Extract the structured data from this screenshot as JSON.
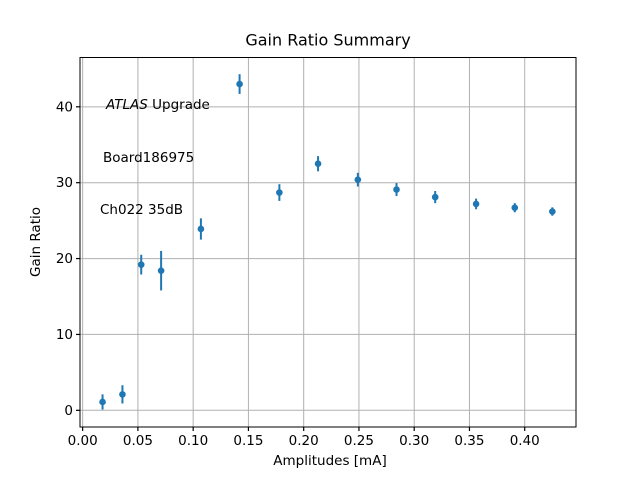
{
  "chart_data": {
    "type": "scatter",
    "title": "Gain Ratio Summary",
    "xlabel": "Amplitudes [mA]",
    "ylabel": "Gain Ratio",
    "annotation": {
      "line1_italic": "ATLAS",
      "line1_rest": " Upgrade",
      "line2": "Board186975",
      "line3": "Ch022 35dB"
    },
    "x": [
      0.018,
      0.036,
      0.053,
      0.071,
      0.107,
      0.142,
      0.178,
      0.213,
      0.249,
      0.284,
      0.319,
      0.356,
      0.391,
      0.425
    ],
    "y": [
      1.1,
      2.1,
      19.2,
      18.4,
      23.9,
      43.0,
      28.7,
      32.5,
      30.4,
      29.1,
      28.1,
      27.2,
      26.7,
      26.2
    ],
    "yerr": [
      1.0,
      1.2,
      1.3,
      2.6,
      1.4,
      1.3,
      1.1,
      1.0,
      0.9,
      0.85,
      0.8,
      0.7,
      0.6,
      0.55
    ],
    "xlim": [
      -0.0024,
      0.4464
    ],
    "ylim": [
      -2.2,
      46.5
    ],
    "xticks": {
      "values": [
        0.0,
        0.05,
        0.1,
        0.15,
        0.2,
        0.25,
        0.3,
        0.35,
        0.4
      ],
      "labels": [
        "0.00",
        "0.05",
        "0.10",
        "0.15",
        "0.20",
        "0.25",
        "0.30",
        "0.35",
        "0.40"
      ]
    },
    "yticks": {
      "values": [
        0,
        10,
        20,
        30,
        40
      ],
      "labels": [
        "0",
        "10",
        "20",
        "30",
        "40"
      ]
    },
    "grid": true,
    "legend": null,
    "colors": {
      "marker": "#1f77b4",
      "grid": "#b0b0b0",
      "spine": "#000000",
      "background": "#ffffff"
    }
  }
}
